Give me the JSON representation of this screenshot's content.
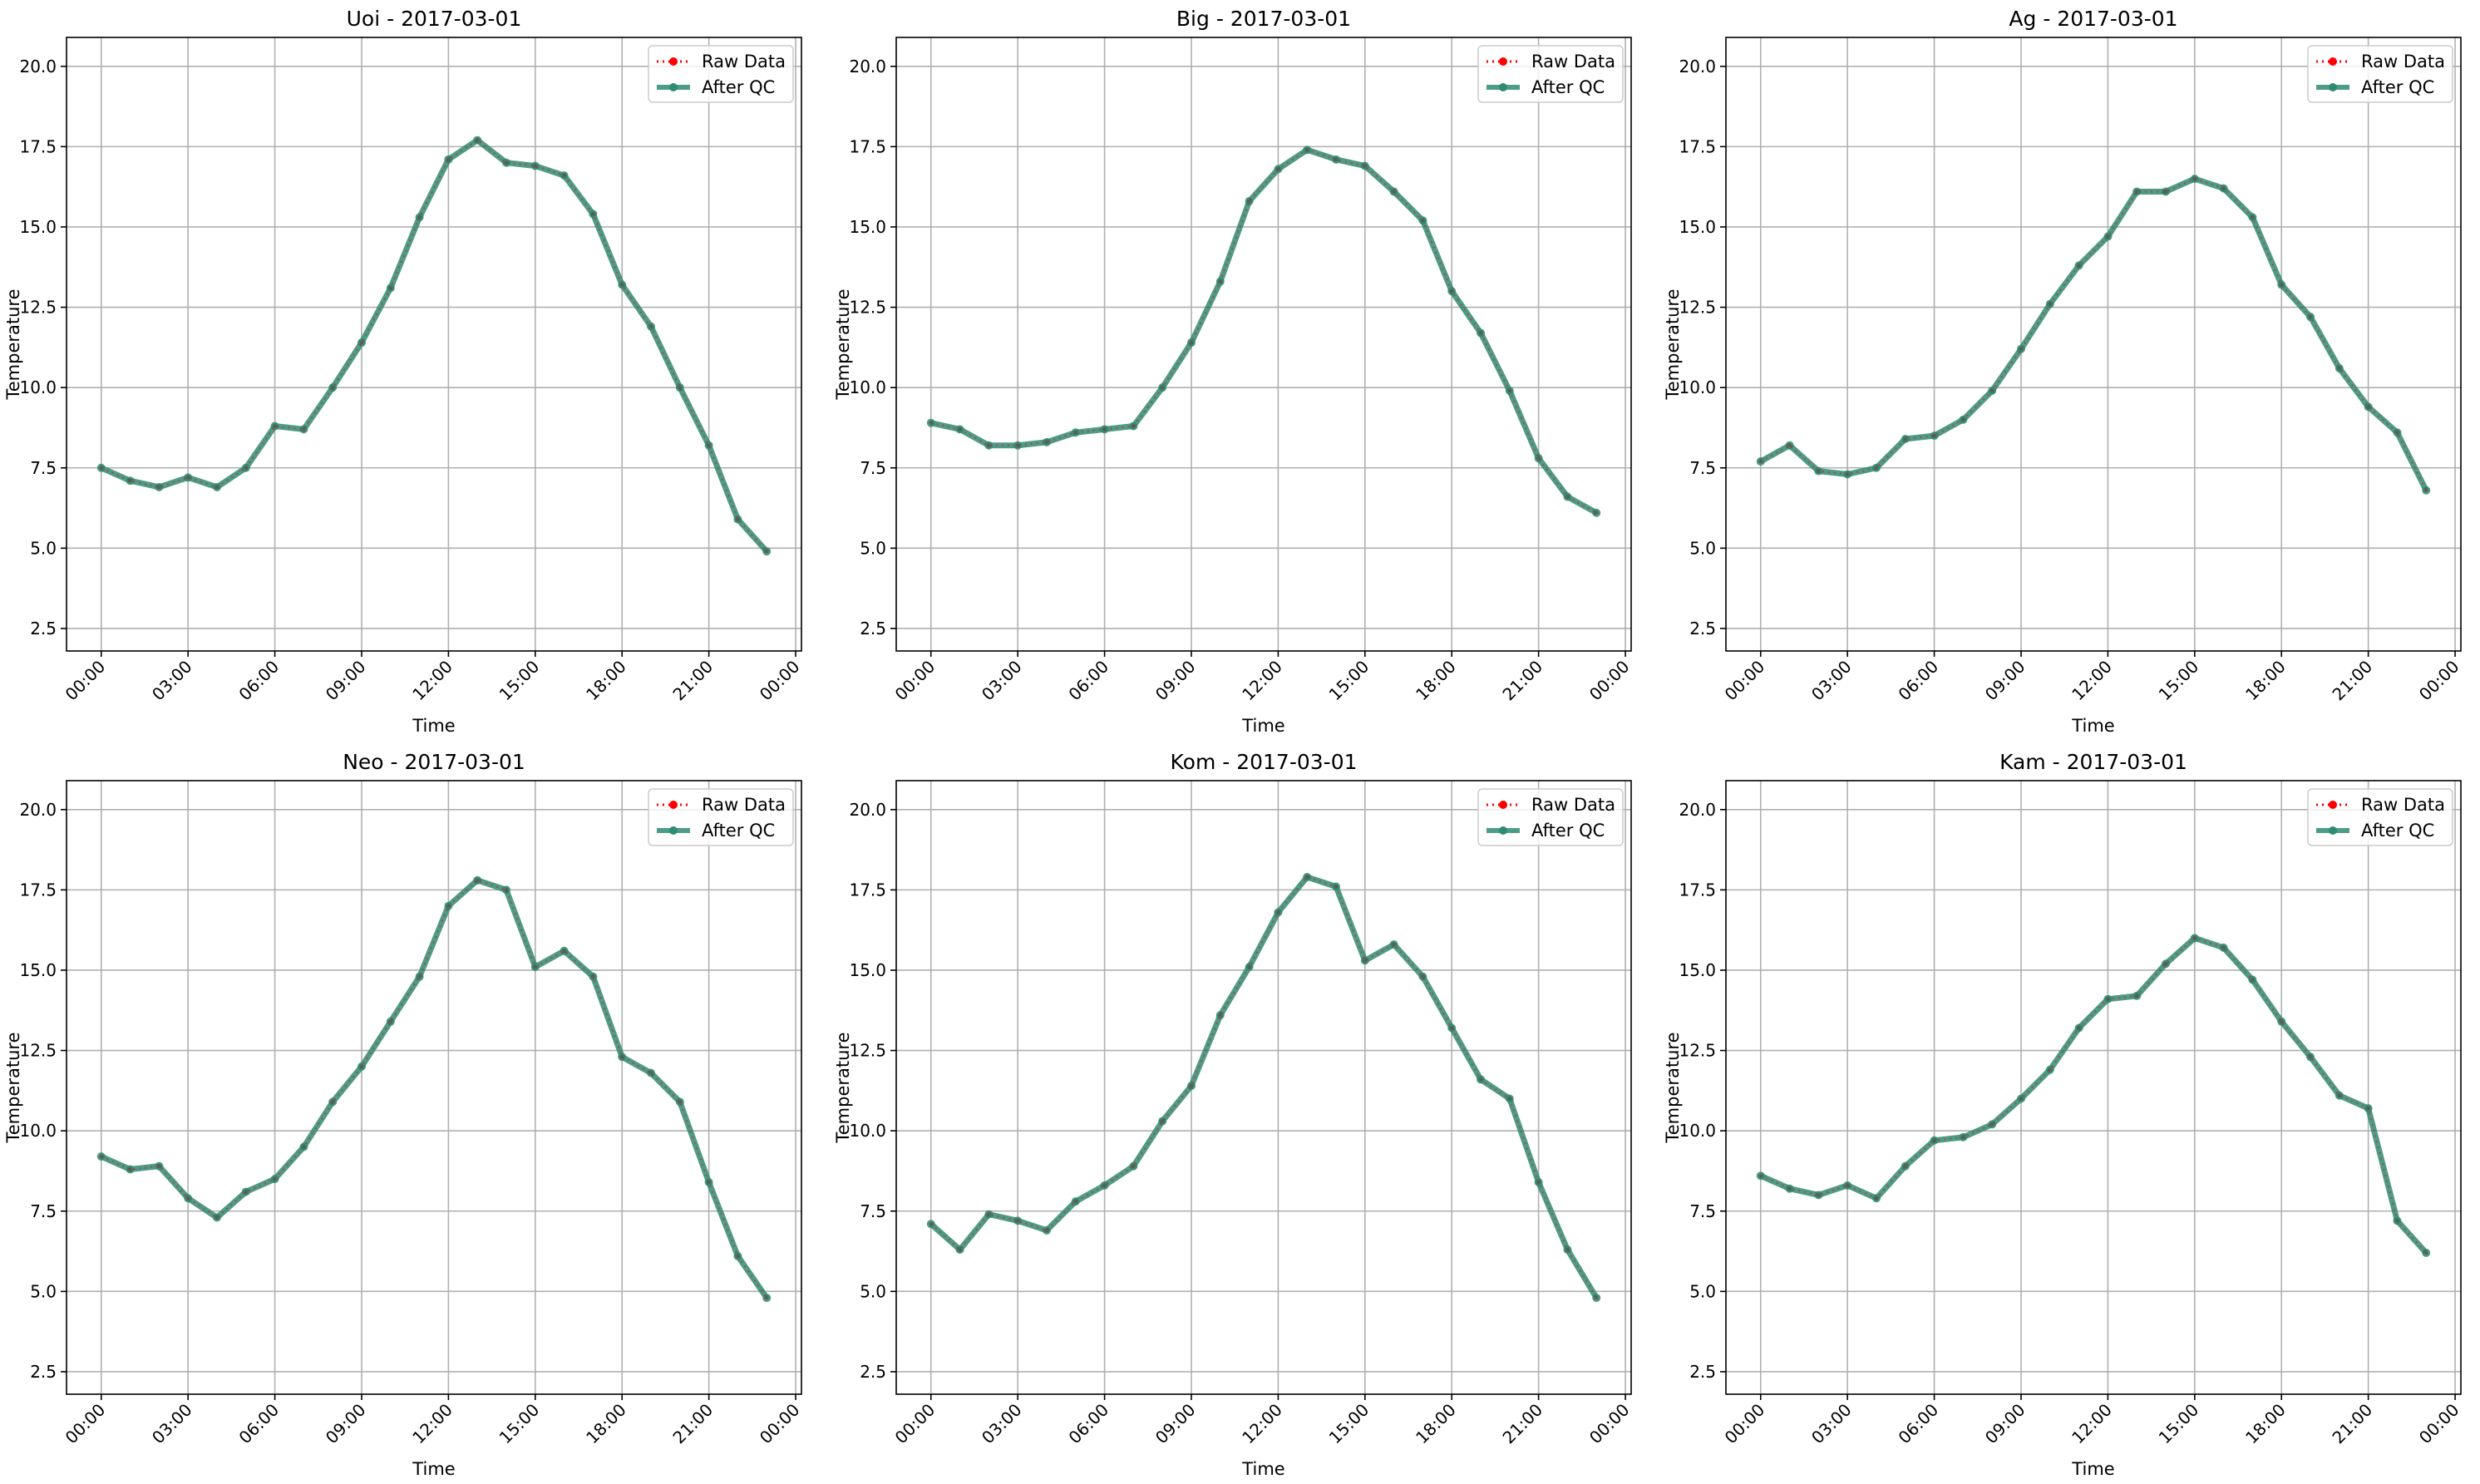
{
  "chart_data": [
    {
      "type": "line",
      "title": "Uoi - 2017-03-01",
      "xlabel": "Time",
      "ylabel": "Temperature",
      "ylim": [
        1.8,
        20.9
      ],
      "yticks": [
        2.5,
        5.0,
        7.5,
        10.0,
        12.5,
        15.0,
        17.5,
        20.0
      ],
      "xticks": [
        "00:00",
        "03:00",
        "06:00",
        "09:00",
        "12:00",
        "15:00",
        "18:00",
        "21:00",
        "00:00"
      ],
      "x": [
        0,
        1,
        2,
        3,
        4,
        5,
        6,
        7,
        8,
        9,
        10,
        11,
        12,
        13,
        14,
        15,
        16,
        17,
        18,
        19,
        20,
        21,
        22,
        23
      ],
      "xlim": [
        -1.2,
        24.2
      ],
      "grid": true,
      "legend": "top-right",
      "series": [
        {
          "name": "Raw Data",
          "color": "#ff0000",
          "values": [
            7.5,
            7.1,
            6.9,
            7.2,
            6.9,
            7.5,
            8.8,
            8.7,
            10.0,
            11.4,
            13.1,
            15.3,
            17.1,
            17.7,
            17.0,
            16.9,
            16.6,
            15.4,
            13.2,
            11.9,
            10.0,
            8.2,
            5.9,
            4.9
          ]
        },
        {
          "name": "After QC",
          "color": "#2e8b73",
          "values": [
            7.5,
            7.1,
            6.9,
            7.2,
            6.9,
            7.5,
            8.8,
            8.7,
            10.0,
            11.4,
            13.1,
            15.3,
            17.1,
            17.7,
            17.0,
            16.9,
            16.6,
            15.4,
            13.2,
            11.9,
            10.0,
            8.2,
            5.9,
            4.9
          ]
        }
      ]
    },
    {
      "type": "line",
      "title": "Big - 2017-03-01",
      "xlabel": "Time",
      "ylabel": "Temperature",
      "ylim": [
        1.8,
        20.9
      ],
      "yticks": [
        2.5,
        5.0,
        7.5,
        10.0,
        12.5,
        15.0,
        17.5,
        20.0
      ],
      "xticks": [
        "00:00",
        "03:00",
        "06:00",
        "09:00",
        "12:00",
        "15:00",
        "18:00",
        "21:00",
        "00:00"
      ],
      "x": [
        0,
        1,
        2,
        3,
        4,
        5,
        6,
        7,
        8,
        9,
        10,
        11,
        12,
        13,
        14,
        15,
        16,
        17,
        18,
        19,
        20,
        21,
        22,
        23
      ],
      "xlim": [
        -1.2,
        24.2
      ],
      "grid": true,
      "legend": "top-right",
      "series": [
        {
          "name": "Raw Data",
          "color": "#ff0000",
          "values": [
            8.9,
            8.7,
            8.2,
            8.2,
            8.3,
            8.6,
            8.7,
            8.8,
            10.0,
            11.4,
            13.3,
            15.8,
            16.8,
            17.4,
            17.1,
            16.9,
            16.1,
            15.2,
            13.0,
            11.7,
            9.9,
            7.8,
            6.6,
            6.1
          ]
        },
        {
          "name": "After QC",
          "color": "#2e8b73",
          "values": [
            8.9,
            8.7,
            8.2,
            8.2,
            8.3,
            8.6,
            8.7,
            8.8,
            10.0,
            11.4,
            13.3,
            15.8,
            16.8,
            17.4,
            17.1,
            16.9,
            16.1,
            15.2,
            13.0,
            11.7,
            9.9,
            7.8,
            6.6,
            6.1
          ]
        }
      ]
    },
    {
      "type": "line",
      "title": "Ag - 2017-03-01",
      "xlabel": "Time",
      "ylabel": "Temperature",
      "ylim": [
        1.8,
        20.9
      ],
      "yticks": [
        2.5,
        5.0,
        7.5,
        10.0,
        12.5,
        15.0,
        17.5,
        20.0
      ],
      "xticks": [
        "00:00",
        "03:00",
        "06:00",
        "09:00",
        "12:00",
        "15:00",
        "18:00",
        "21:00",
        "00:00"
      ],
      "x": [
        0,
        1,
        2,
        3,
        4,
        5,
        6,
        7,
        8,
        9,
        10,
        11,
        12,
        13,
        14,
        15,
        16,
        17,
        18,
        19,
        20,
        21,
        22,
        23
      ],
      "xlim": [
        -1.2,
        24.2
      ],
      "grid": true,
      "legend": "top-right",
      "series": [
        {
          "name": "Raw Data",
          "color": "#ff0000",
          "values": [
            7.7,
            8.2,
            7.4,
            7.3,
            7.5,
            8.4,
            8.5,
            9.0,
            9.9,
            11.2,
            12.6,
            13.8,
            14.7,
            16.1,
            16.1,
            16.5,
            16.2,
            15.3,
            13.2,
            12.2,
            10.6,
            9.4,
            8.6,
            6.8
          ]
        },
        {
          "name": "After QC",
          "color": "#2e8b73",
          "values": [
            7.7,
            8.2,
            7.4,
            7.3,
            7.5,
            8.4,
            8.5,
            9.0,
            9.9,
            11.2,
            12.6,
            13.8,
            14.7,
            16.1,
            16.1,
            16.5,
            16.2,
            15.3,
            13.2,
            12.2,
            10.6,
            9.4,
            8.6,
            6.8
          ]
        }
      ]
    },
    {
      "type": "line",
      "title": "Neo - 2017-03-01",
      "xlabel": "Time",
      "ylabel": "Temperature",
      "ylim": [
        1.8,
        20.9
      ],
      "yticks": [
        2.5,
        5.0,
        7.5,
        10.0,
        12.5,
        15.0,
        17.5,
        20.0
      ],
      "xticks": [
        "00:00",
        "03:00",
        "06:00",
        "09:00",
        "12:00",
        "15:00",
        "18:00",
        "21:00",
        "00:00"
      ],
      "x": [
        0,
        1,
        2,
        3,
        4,
        5,
        6,
        7,
        8,
        9,
        10,
        11,
        12,
        13,
        14,
        15,
        16,
        17,
        18,
        19,
        20,
        21,
        22,
        23
      ],
      "xlim": [
        -1.2,
        24.2
      ],
      "grid": true,
      "legend": "top-right",
      "series": [
        {
          "name": "Raw Data",
          "color": "#ff0000",
          "values": [
            9.2,
            8.8,
            8.9,
            7.9,
            7.3,
            8.1,
            8.5,
            9.5,
            10.9,
            12.0,
            13.4,
            14.8,
            17.0,
            17.8,
            17.5,
            15.1,
            15.6,
            14.8,
            12.3,
            11.8,
            10.9,
            8.4,
            6.1,
            4.8
          ]
        },
        {
          "name": "After QC",
          "color": "#2e8b73",
          "values": [
            9.2,
            8.8,
            8.9,
            7.9,
            7.3,
            8.1,
            8.5,
            9.5,
            10.9,
            12.0,
            13.4,
            14.8,
            17.0,
            17.8,
            17.5,
            15.1,
            15.6,
            14.8,
            12.3,
            11.8,
            10.9,
            8.4,
            6.1,
            4.8
          ]
        }
      ]
    },
    {
      "type": "line",
      "title": "Kom - 2017-03-01",
      "xlabel": "Time",
      "ylabel": "Temperature",
      "ylim": [
        1.8,
        20.9
      ],
      "yticks": [
        2.5,
        5.0,
        7.5,
        10.0,
        12.5,
        15.0,
        17.5,
        20.0
      ],
      "xticks": [
        "00:00",
        "03:00",
        "06:00",
        "09:00",
        "12:00",
        "15:00",
        "18:00",
        "21:00",
        "00:00"
      ],
      "x": [
        0,
        1,
        2,
        3,
        4,
        5,
        6,
        7,
        8,
        9,
        10,
        11,
        12,
        13,
        14,
        15,
        16,
        17,
        18,
        19,
        20,
        21,
        22,
        23
      ],
      "xlim": [
        -1.2,
        24.2
      ],
      "grid": true,
      "legend": "top-right",
      "series": [
        {
          "name": "Raw Data",
          "color": "#ff0000",
          "values": [
            7.1,
            6.3,
            7.4,
            7.2,
            6.9,
            7.8,
            8.3,
            8.9,
            10.3,
            11.4,
            13.6,
            15.1,
            16.8,
            17.9,
            17.6,
            15.3,
            15.8,
            14.8,
            13.2,
            11.6,
            11.0,
            8.4,
            6.3,
            4.8
          ]
        },
        {
          "name": "After QC",
          "color": "#2e8b73",
          "values": [
            7.1,
            6.3,
            7.4,
            7.2,
            6.9,
            7.8,
            8.3,
            8.9,
            10.3,
            11.4,
            13.6,
            15.1,
            16.8,
            17.9,
            17.6,
            15.3,
            15.8,
            14.8,
            13.2,
            11.6,
            11.0,
            8.4,
            6.3,
            4.8
          ]
        }
      ]
    },
    {
      "type": "line",
      "title": "Kam - 2017-03-01",
      "xlabel": "Time",
      "ylabel": "Temperature",
      "ylim": [
        1.8,
        20.9
      ],
      "yticks": [
        2.5,
        5.0,
        7.5,
        10.0,
        12.5,
        15.0,
        17.5,
        20.0
      ],
      "xticks": [
        "00:00",
        "03:00",
        "06:00",
        "09:00",
        "12:00",
        "15:00",
        "18:00",
        "21:00",
        "00:00"
      ],
      "x": [
        0,
        1,
        2,
        3,
        4,
        5,
        6,
        7,
        8,
        9,
        10,
        11,
        12,
        13,
        14,
        15,
        16,
        17,
        18,
        19,
        20,
        21,
        22,
        23
      ],
      "xlim": [
        -1.2,
        24.2
      ],
      "grid": true,
      "legend": "top-right",
      "series": [
        {
          "name": "Raw Data",
          "color": "#ff0000",
          "values": [
            8.6,
            8.2,
            8.0,
            8.3,
            7.9,
            8.9,
            9.7,
            9.8,
            10.2,
            11.0,
            11.9,
            13.2,
            14.1,
            14.2,
            15.2,
            16.0,
            15.7,
            14.7,
            13.4,
            12.3,
            11.1,
            10.7,
            7.2,
            6.2
          ]
        },
        {
          "name": "After QC",
          "color": "#2e8b73",
          "values": [
            8.6,
            8.2,
            8.0,
            8.3,
            7.9,
            8.9,
            9.7,
            9.8,
            10.2,
            11.0,
            11.9,
            13.2,
            14.1,
            14.2,
            15.2,
            16.0,
            15.7,
            14.7,
            13.4,
            12.3,
            11.1,
            10.7,
            7.2,
            6.2
          ]
        }
      ]
    }
  ]
}
